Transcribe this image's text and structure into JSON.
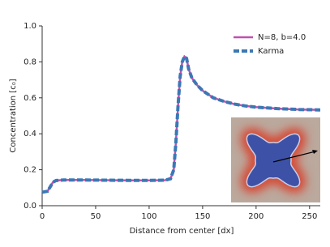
{
  "chart_data": {
    "type": "line",
    "xlabel": "Distance from center [dx]",
    "ylabel": "Concentration [c₀]",
    "x": [
      0,
      5,
      8,
      10,
      13,
      20,
      40,
      60,
      80,
      100,
      115,
      120,
      123,
      125,
      127,
      129,
      131,
      133,
      135,
      137,
      140,
      145,
      150,
      160,
      170,
      180,
      190,
      200,
      220,
      240,
      260
    ],
    "series": [
      {
        "name": "N=8, b=4.0",
        "color": "#c050b0",
        "style": "solid",
        "values": [
          0.075,
          0.08,
          0.11,
          0.13,
          0.14,
          0.143,
          0.143,
          0.142,
          0.141,
          0.141,
          0.142,
          0.15,
          0.2,
          0.35,
          0.55,
          0.72,
          0.8,
          0.83,
          0.82,
          0.76,
          0.71,
          0.67,
          0.64,
          0.6,
          0.58,
          0.565,
          0.555,
          0.548,
          0.54,
          0.535,
          0.533
        ]
      },
      {
        "name": "Karma",
        "color": "#3b78b5",
        "style": "dashed",
        "values": [
          0.075,
          0.08,
          0.11,
          0.13,
          0.14,
          0.143,
          0.143,
          0.142,
          0.141,
          0.141,
          0.142,
          0.15,
          0.2,
          0.35,
          0.55,
          0.72,
          0.8,
          0.83,
          0.82,
          0.76,
          0.71,
          0.67,
          0.64,
          0.6,
          0.58,
          0.565,
          0.555,
          0.548,
          0.54,
          0.535,
          0.533
        ]
      }
    ],
    "xlim": [
      0,
      260
    ],
    "xticks": [
      0,
      50,
      100,
      150,
      200,
      250
    ],
    "ylim": [
      0,
      1
    ],
    "yticks": [
      {
        "value": 0,
        "label": "0.0"
      },
      {
        "value": 0.2,
        "label": "0.2"
      },
      {
        "value": 0.4,
        "label": "0.4"
      },
      {
        "value": 0.6,
        "label": "0.6"
      },
      {
        "value": 0.8,
        "label": "0.8"
      },
      {
        "value": 1,
        "label": "1.0"
      }
    ],
    "legend": "upper right"
  }
}
